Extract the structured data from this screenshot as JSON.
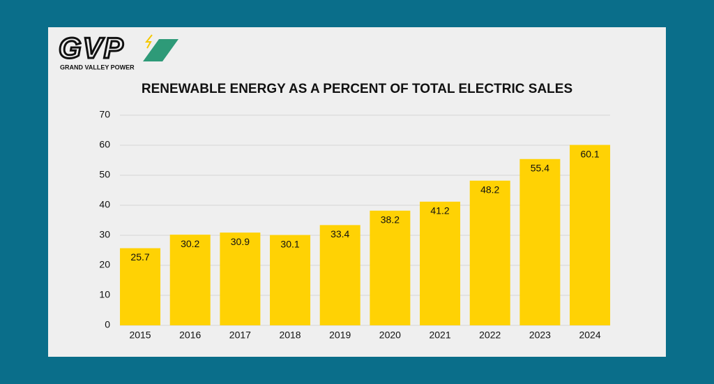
{
  "logo": {
    "mark": "GVP",
    "name": "GRAND VALLEY POWER"
  },
  "chart_data": {
    "type": "bar",
    "title": "RENEWABLE ENERGY AS A PERCENT OF TOTAL ELECTRIC SALES",
    "categories": [
      "2015",
      "2016",
      "2017",
      "2018",
      "2019",
      "2020",
      "2021",
      "2022",
      "2023",
      "2024"
    ],
    "values": [
      25.7,
      30.2,
      30.9,
      30.1,
      33.4,
      38.2,
      41.2,
      48.2,
      55.4,
      60.1
    ],
    "color": "#ffd204",
    "ylim": [
      0,
      70
    ],
    "yticks": [
      0,
      10,
      20,
      30,
      40,
      50,
      60,
      70
    ],
    "grid": true
  }
}
